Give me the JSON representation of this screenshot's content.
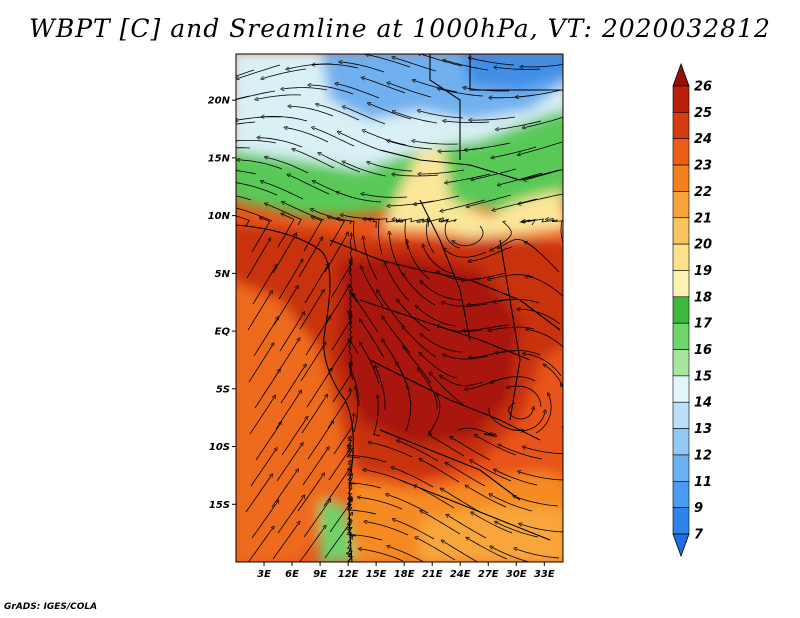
{
  "title": "WBPT [C] and Sreamline at 1000hPa, VT: 2020032812",
  "credit": "GrADS: IGES/COLA",
  "map": {
    "lon_range": [
      0,
      35
    ],
    "lat_range": [
      -20,
      24
    ],
    "lat_ticks": [
      {
        "value": 20,
        "label": "20N"
      },
      {
        "value": 15,
        "label": "15N"
      },
      {
        "value": 10,
        "label": "10N"
      },
      {
        "value": 5,
        "label": "5N"
      },
      {
        "value": 0,
        "label": "EQ"
      },
      {
        "value": -5,
        "label": "5S"
      },
      {
        "value": -10,
        "label": "10S"
      },
      {
        "value": -15,
        "label": "15S"
      }
    ],
    "lon_ticks": [
      {
        "value": 3,
        "label": "3E"
      },
      {
        "value": 6,
        "label": "6E"
      },
      {
        "value": 9,
        "label": "9E"
      },
      {
        "value": 12,
        "label": "12E"
      },
      {
        "value": 15,
        "label": "15E"
      },
      {
        "value": 18,
        "label": "18E"
      },
      {
        "value": 21,
        "label": "21E"
      },
      {
        "value": 24,
        "label": "24E"
      },
      {
        "value": 27,
        "label": "27E"
      },
      {
        "value": 30,
        "label": "30E"
      },
      {
        "value": 33,
        "label": "33E"
      }
    ]
  },
  "colorbar": {
    "labels": [
      "7",
      "9",
      "11",
      "12",
      "13",
      "14",
      "15",
      "16",
      "17",
      "18",
      "19",
      "20",
      "21",
      "22",
      "23",
      "24",
      "25",
      "26"
    ],
    "colors": [
      "#1e6ee0",
      "#2d85ec",
      "#4a9cf2",
      "#6cb2f4",
      "#93c8f7",
      "#bde0f9",
      "#e4f5f8",
      "#a8e6a0",
      "#6fd46a",
      "#3db93b",
      "#fdf2b3",
      "#fce18b",
      "#f9c35e",
      "#f7a33a",
      "#f4801e",
      "#ec5f17",
      "#d53c12",
      "#b8200c",
      "#9b0d08"
    ]
  },
  "field_regions": [
    {
      "id": "north-blue",
      "value": 12
    },
    {
      "id": "north-pale",
      "value": 15
    },
    {
      "id": "sahel-green",
      "value": 17
    },
    {
      "id": "yellow-band",
      "value": 19
    },
    {
      "id": "ocean-orange",
      "value": 22
    },
    {
      "id": "central-red",
      "value": 24
    },
    {
      "id": "basin-core",
      "value": 25
    },
    {
      "id": "south-orange",
      "value": 22
    },
    {
      "id": "southwest-green",
      "value": 17
    }
  ]
}
